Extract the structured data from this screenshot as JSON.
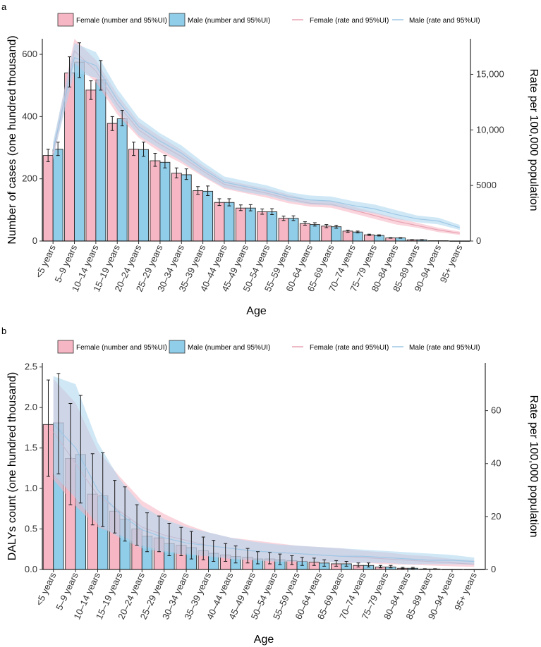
{
  "chart_data": [
    {
      "panel": "a",
      "type": "bar",
      "categories": [
        "<5 years",
        "5–9 years",
        "10–14 years",
        "15–19 years",
        "20–24 years",
        "25–29 years",
        "30–34 years",
        "35–39 years",
        "40–44 years",
        "45–49 years",
        "50–54 years",
        "55–59 years",
        "60–64 years",
        "65–69 years",
        "70–74 years",
        "75–79 years",
        "80–84 years",
        "85–89 years",
        "90–94 years",
        "95+ years"
      ],
      "xlabel": "Age",
      "ylabel": "Number of cases (one hundred thousand)",
      "ylabel_right": "Rate per 100,000 population",
      "ylim": [
        0,
        650
      ],
      "yticks": [
        0,
        200,
        400,
        600
      ],
      "ytick_labels": [
        "0",
        "200",
        "400",
        "600"
      ],
      "ylim_right": [
        0,
        18200
      ],
      "yticks_right": [
        0,
        5000,
        10000,
        15000
      ],
      "ytick_labels_right": [
        "0",
        "5000",
        "10,000",
        "15,000"
      ],
      "legend": {
        "female_number": "Female (number and 95%UI)",
        "male_number": "Male (number and 95%UI)",
        "female_rate": "Female (rate and 95%UI)",
        "male_rate": "Male (rate and 95%UI)"
      },
      "series": [
        {
          "name": "Female (number and 95%UI)",
          "kind": "bar",
          "values": [
            275,
            540,
            485,
            378,
            295,
            258,
            218,
            162,
            124,
            106,
            94,
            73,
            56,
            48,
            32,
            20,
            10,
            4,
            1,
            0.3
          ],
          "lower": [
            255,
            495,
            455,
            355,
            275,
            240,
            203,
            150,
            114,
            98,
            86,
            66,
            51,
            43,
            28,
            18,
            9,
            3,
            0.8,
            0.2
          ],
          "upper": [
            295,
            592,
            515,
            400,
            318,
            282,
            235,
            175,
            136,
            116,
            103,
            80,
            62,
            53,
            35,
            22,
            11,
            4.5,
            1.3,
            0.4
          ]
        },
        {
          "name": "Male (number and 95%UI)",
          "kind": "bar",
          "values": [
            295,
            575,
            518,
            393,
            294,
            253,
            213,
            160,
            124,
            106,
            94,
            73,
            53,
            46,
            29,
            18,
            10,
            4,
            1,
            0.3
          ],
          "lower": [
            275,
            525,
            485,
            370,
            272,
            235,
            198,
            146,
            113,
            97,
            85,
            66,
            48,
            41,
            26,
            16,
            9,
            3,
            0.8,
            0.2
          ],
          "upper": [
            318,
            637,
            580,
            420,
            318,
            275,
            232,
            177,
            136,
            117,
            104,
            81,
            59,
            51,
            32,
            20,
            11,
            4.5,
            1.3,
            0.4
          ]
        },
        {
          "name": "Female (rate and 95%UI)",
          "kind": "rate",
          "values": [
            7900,
            17100,
            15300,
            12300,
            10000,
            8700,
            7600,
            6300,
            5100,
            4700,
            4300,
            3800,
            3400,
            3300,
            2800,
            2300,
            1800,
            1400,
            1000,
            700
          ],
          "lower": [
            7300,
            16000,
            14300,
            11400,
            9300,
            8000,
            7000,
            5800,
            4700,
            4300,
            3900,
            3400,
            3100,
            3000,
            2500,
            2000,
            1500,
            1200,
            800,
            550
          ],
          "upper": [
            8600,
            18200,
            16300,
            13200,
            10700,
            9400,
            8200,
            6800,
            5500,
            5100,
            4700,
            4200,
            3700,
            3600,
            3100,
            2600,
            2100,
            1650,
            1200,
            850
          ]
        },
        {
          "name": "Male (rate and 95%UI)",
          "kind": "rate",
          "values": [
            8200,
            16500,
            15800,
            12700,
            10300,
            9000,
            7900,
            6500,
            5300,
            4900,
            4500,
            4000,
            3700,
            3600,
            3200,
            2900,
            2400,
            2000,
            1800,
            1200
          ],
          "lower": [
            7500,
            15200,
            14700,
            11800,
            9500,
            8300,
            7200,
            5900,
            4800,
            4400,
            4100,
            3600,
            3300,
            3200,
            2800,
            2500,
            2000,
            1700,
            1500,
            1000
          ],
          "upper": [
            8900,
            17800,
            17000,
            13700,
            11100,
            9700,
            8600,
            7100,
            5800,
            5400,
            5000,
            4400,
            4100,
            4000,
            3600,
            3300,
            2800,
            2300,
            2100,
            1450
          ]
        }
      ]
    },
    {
      "panel": "b",
      "type": "bar",
      "categories": [
        "<5 years",
        "5–9 years",
        "10–14 years",
        "15–19 years",
        "20–24 years",
        "25–29 years",
        "30–34 years",
        "35–39 years",
        "40–44 years",
        "45–49 years",
        "50–54 years",
        "55–59 years",
        "60–64 years",
        "65–69 years",
        "70–74 years",
        "75–79 years",
        "80–84 years",
        "85–89 years",
        "90–94 years",
        "95+ years"
      ],
      "xlabel": "Age",
      "ylabel": "DALYs count (one hundred thousand)",
      "ylabel_right": "Rate per 100,000 population",
      "ylim": [
        0,
        2.55
      ],
      "yticks": [
        0,
        0.5,
        1.0,
        1.5,
        2.0,
        2.5
      ],
      "ytick_labels": [
        "0.0",
        "0.5",
        "1.0",
        "1.5",
        "2.0",
        "2.5"
      ],
      "ylim_right": [
        0,
        78
      ],
      "yticks_right": [
        0,
        20,
        40,
        60
      ],
      "ytick_labels_right": [
        "0",
        "20",
        "40",
        "60"
      ],
      "legend": {
        "female_number": "Female (number and 95%UI)",
        "male_number": "Male (number and 95%UI)",
        "female_rate": "Female (rate and 95%UI)",
        "male_rate": "Male (rate and 95%UI)"
      },
      "series": [
        {
          "name": "Female (number and 95%UI)",
          "kind": "bar",
          "values": [
            1.79,
            1.37,
            0.93,
            0.72,
            0.5,
            0.39,
            0.3,
            0.23,
            0.18,
            0.15,
            0.13,
            0.11,
            0.09,
            0.07,
            0.05,
            0.03,
            0.015,
            0.006,
            0.002,
            0.001
          ],
          "lower": [
            1.15,
            0.8,
            0.55,
            0.45,
            0.3,
            0.22,
            0.17,
            0.12,
            0.1,
            0.08,
            0.07,
            0.06,
            0.05,
            0.04,
            0.03,
            0.02,
            0.01,
            0.004,
            0.001,
            0.0005
          ],
          "upper": [
            2.34,
            2.05,
            1.43,
            1.1,
            0.8,
            0.66,
            0.52,
            0.4,
            0.32,
            0.26,
            0.21,
            0.17,
            0.14,
            0.11,
            0.08,
            0.05,
            0.025,
            0.01,
            0.003,
            0.0015
          ]
        },
        {
          "name": "Male (number and 95%UI)",
          "kind": "bar",
          "values": [
            1.81,
            1.42,
            0.91,
            0.62,
            0.41,
            0.32,
            0.27,
            0.2,
            0.16,
            0.13,
            0.12,
            0.1,
            0.08,
            0.07,
            0.05,
            0.03,
            0.015,
            0.006,
            0.002,
            0.001
          ],
          "lower": [
            1.18,
            0.82,
            0.53,
            0.35,
            0.22,
            0.17,
            0.13,
            0.1,
            0.08,
            0.07,
            0.06,
            0.05,
            0.04,
            0.04,
            0.03,
            0.02,
            0.01,
            0.004,
            0.001,
            0.0005
          ],
          "upper": [
            2.42,
            2.15,
            1.44,
            1.02,
            0.7,
            0.57,
            0.47,
            0.36,
            0.29,
            0.22,
            0.19,
            0.15,
            0.12,
            0.1,
            0.08,
            0.05,
            0.025,
            0.01,
            0.003,
            0.0015
          ]
        },
        {
          "name": "Female (rate and 95%UI)",
          "kind": "rate",
          "values": [
            52,
            40,
            28,
            22,
            16,
            13,
            11,
            9,
            8,
            7,
            6.5,
            6,
            5.5,
            5,
            4.5,
            4,
            3.5,
            3,
            2.5,
            2
          ],
          "lower": [
            34,
            24,
            16,
            13,
            9,
            7,
            6,
            5,
            4,
            3.5,
            3,
            3,
            3,
            2.5,
            2.5,
            2,
            1.8,
            1.5,
            1.2,
            1
          ],
          "upper": [
            72,
            63,
            45,
            35,
            26,
            21,
            17,
            14,
            12,
            11,
            10,
            9,
            8.5,
            8,
            7,
            6.5,
            5.5,
            5,
            4,
            3.5
          ]
        },
        {
          "name": "Male (rate and 95%UI)",
          "kind": "rate",
          "values": [
            55,
            46,
            30,
            21,
            15,
            12,
            10,
            9,
            8,
            7,
            6.5,
            6,
            5.5,
            5,
            5,
            4.5,
            4,
            3.5,
            3.5,
            3
          ],
          "lower": [
            36,
            27,
            17,
            12,
            8,
            6.5,
            5.5,
            5,
            4,
            3.5,
            3,
            3,
            3,
            2.5,
            2.5,
            2.5,
            2,
            2,
            2,
            1.8
          ],
          "upper": [
            73,
            70,
            48,
            34,
            24,
            19,
            16,
            14,
            12,
            10.5,
            9.5,
            9,
            8.5,
            8,
            7.5,
            7,
            6.5,
            6,
            5.5,
            4.5
          ]
        }
      ]
    }
  ],
  "colors": {
    "female": "#f7b6c3",
    "male": "#8fcde9",
    "female_band": "#f6b3c1",
    "male_band": "#a9d6ef",
    "female_line": "#e8a3b3",
    "male_line": "#9fc8e6"
  }
}
